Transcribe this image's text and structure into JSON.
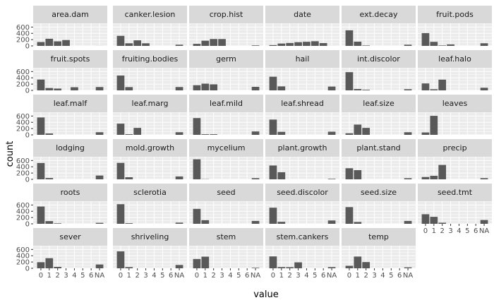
{
  "chart_data": {
    "type": "bar",
    "xlabel": "value",
    "ylabel": "count",
    "x_categories": [
      "0",
      "1",
      "2",
      "3",
      "4",
      "5",
      "6",
      "NA"
    ],
    "y_ticks": [
      0,
      200,
      400,
      600
    ],
    "ylim": [
      0,
      720
    ],
    "grid": true,
    "colors": {
      "bar": "#595959",
      "panel_background": "#ebebeb",
      "grid_line": "#ffffff",
      "strip_background": "#d9d9d9",
      "text": "#1a1a1a",
      "tick_text": "#4d4d4d"
    },
    "facets": [
      {
        "name": "area.dam",
        "values": [
          123,
          227,
          145,
          187,
          0,
          0,
          0,
          1
        ]
      },
      {
        "name": "canker.lesion",
        "values": [
          320,
          83,
          177,
          83,
          0,
          0,
          0,
          38
        ]
      },
      {
        "name": "crop.hist",
        "values": [
          65,
          165,
          219,
          218,
          0,
          0,
          0,
          16
        ]
      },
      {
        "name": "date",
        "values": [
          26,
          75,
          93,
          118,
          131,
          149,
          90,
          1
        ]
      },
      {
        "name": "ext.decay",
        "values": [
          497,
          135,
          13,
          0,
          0,
          0,
          0,
          38
        ]
      },
      {
        "name": "fruit.pods",
        "values": [
          407,
          130,
          14,
          48,
          0,
          0,
          0,
          84
        ]
      },
      {
        "name": "fruit.spots",
        "values": [
          345,
          75,
          57,
          0,
          100,
          0,
          0,
          106
        ]
      },
      {
        "name": "fruiting.bodies",
        "values": [
          473,
          104,
          0,
          0,
          0,
          0,
          0,
          106
        ]
      },
      {
        "name": "germ",
        "values": [
          165,
          213,
          193,
          0,
          0,
          0,
          0,
          112
        ]
      },
      {
        "name": "hail",
        "values": [
          435,
          127,
          0,
          0,
          0,
          0,
          0,
          121
        ]
      },
      {
        "name": "int.discolor",
        "values": [
          581,
          44,
          20,
          0,
          0,
          0,
          0,
          38
        ]
      },
      {
        "name": "leaf.halo",
        "values": [
          221,
          36,
          342,
          0,
          0,
          0,
          0,
          84
        ]
      },
      {
        "name": "leaf.malf",
        "values": [
          554,
          45,
          0,
          0,
          0,
          0,
          0,
          84
        ]
      },
      {
        "name": "leaf.marg",
        "values": [
          357,
          21,
          221,
          0,
          0,
          0,
          0,
          84
        ]
      },
      {
        "name": "leaf.mild",
        "values": [
          535,
          20,
          20,
          0,
          0,
          0,
          0,
          108
        ]
      },
      {
        "name": "leaf.shread",
        "values": [
          487,
          96,
          0,
          0,
          0,
          0,
          0,
          100
        ]
      },
      {
        "name": "leaf.size",
        "values": [
          51,
          327,
          221,
          0,
          0,
          0,
          0,
          84
        ]
      },
      {
        "name": "leaves",
        "values": [
          77,
          606,
          0,
          0,
          0,
          0,
          0,
          0
        ]
      },
      {
        "name": "lodging",
        "values": [
          520,
          42,
          0,
          0,
          0,
          0,
          0,
          121
        ]
      },
      {
        "name": "mold.growth",
        "values": [
          524,
          67,
          0,
          0,
          0,
          0,
          0,
          92
        ]
      },
      {
        "name": "mycelium",
        "values": [
          639,
          6,
          0,
          0,
          0,
          0,
          0,
          38
        ]
      },
      {
        "name": "plant.growth",
        "values": [
          441,
          226,
          0,
          0,
          0,
          0,
          0,
          16
        ]
      },
      {
        "name": "plant.stand",
        "values": [
          354,
          293,
          0,
          0,
          0,
          0,
          0,
          36
        ]
      },
      {
        "name": "precip",
        "values": [
          74,
          112,
          459,
          0,
          0,
          0,
          0,
          38
        ]
      },
      {
        "name": "roots",
        "values": [
          551,
          86,
          15,
          0,
          0,
          0,
          0,
          31
        ]
      },
      {
        "name": "sclerotia",
        "values": [
          625,
          20,
          0,
          0,
          0,
          0,
          0,
          38
        ]
      },
      {
        "name": "seed",
        "values": [
          476,
          115,
          0,
          0,
          0,
          0,
          0,
          92
        ]
      },
      {
        "name": "seed.discolor",
        "values": [
          513,
          64,
          0,
          0,
          0,
          0,
          0,
          106
        ]
      },
      {
        "name": "seed.size",
        "values": [
          532,
          59,
          0,
          0,
          0,
          0,
          0,
          92
        ]
      },
      {
        "name": "seed.tmt",
        "values": [
          305,
          222,
          35,
          0,
          0,
          0,
          0,
          121
        ]
      },
      {
        "name": "sever",
        "values": [
          195,
          322,
          45,
          0,
          0,
          0,
          0,
          121
        ]
      },
      {
        "name": "shriveling",
        "values": [
          539,
          38,
          0,
          0,
          0,
          0,
          0,
          106
        ]
      },
      {
        "name": "stem",
        "values": [
          296,
          371,
          0,
          0,
          0,
          0,
          0,
          16
        ]
      },
      {
        "name": "stem.cankers",
        "values": [
          379,
          39,
          36,
          191,
          0,
          0,
          0,
          38
        ]
      },
      {
        "name": "temp",
        "values": [
          80,
          374,
          199,
          0,
          0,
          0,
          0,
          30
        ]
      }
    ]
  }
}
